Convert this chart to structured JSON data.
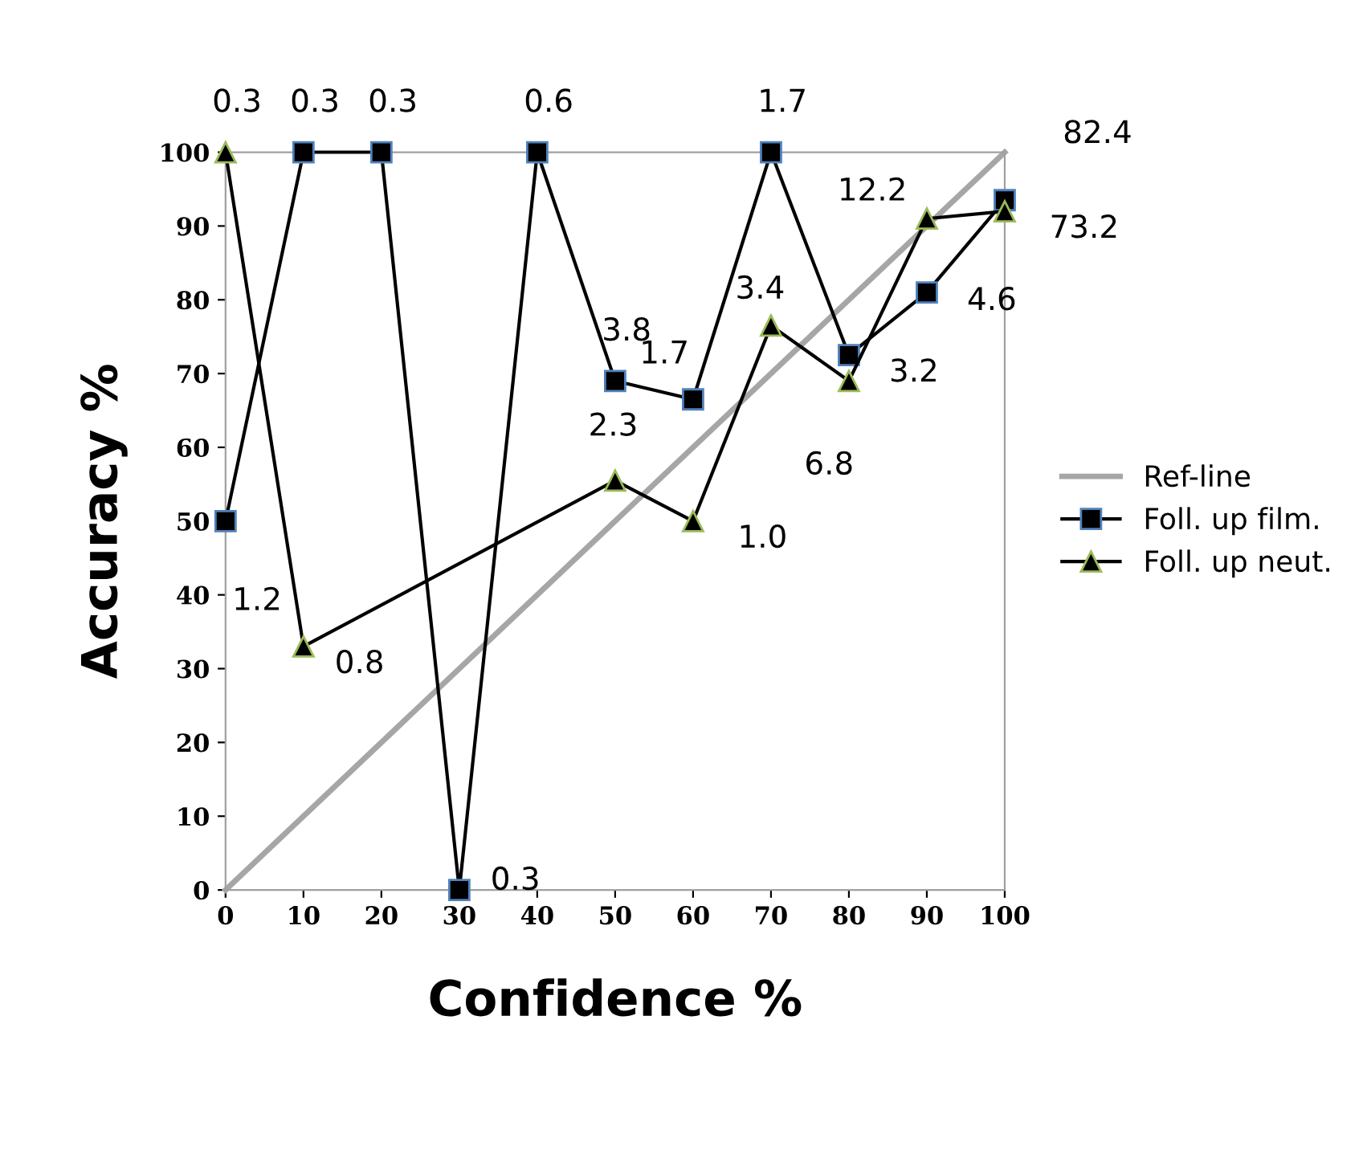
{
  "chart_data": {
    "type": "line",
    "xlabel": "Confidence %",
    "ylabel": "Accuracy %",
    "xlim": [
      0,
      100
    ],
    "xticks": [
      0,
      10,
      20,
      30,
      40,
      50,
      60,
      70,
      80,
      90,
      100
    ],
    "ylim": [
      0,
      100
    ],
    "yticks": [
      0,
      10,
      20,
      30,
      40,
      50,
      60,
      70,
      80,
      90,
      100
    ],
    "grid": false,
    "legend": "right",
    "series": [
      {
        "name": "Ref-line",
        "color": "#a6a6a6",
        "marker": "none",
        "x": [
          0,
          100
        ],
        "values": [
          0,
          100
        ]
      },
      {
        "name": "Foll. up film.",
        "color": "#000000",
        "marker": "square",
        "x": [
          0,
          10,
          20,
          30,
          40,
          50,
          60,
          70,
          80,
          90,
          100
        ],
        "values": [
          50,
          100,
          100,
          0,
          100,
          69,
          66.5,
          100,
          72.5,
          81,
          93.5
        ]
      },
      {
        "name": "Foll. up neut.",
        "color": "#000000",
        "marker": "triangle",
        "x": [
          0,
          10,
          50,
          60,
          70,
          80,
          90,
          100
        ],
        "values": [
          100,
          33,
          55.5,
          50,
          76.5,
          69,
          91,
          92
        ]
      }
    ],
    "annotations": [
      {
        "text": "0.3",
        "x": 0,
        "y": 100
      },
      {
        "text": "0.3",
        "x": 10,
        "y": 100
      },
      {
        "text": "0.3",
        "x": 20,
        "y": 100
      },
      {
        "text": "0.6",
        "x": 40,
        "y": 100
      },
      {
        "text": "1.7",
        "x": 70,
        "y": 100
      },
      {
        "text": "82.4",
        "x": 100,
        "y": 100
      },
      {
        "text": "73.2",
        "x": 100,
        "y": 92
      },
      {
        "text": "12.2",
        "x": 90,
        "y": 91
      },
      {
        "text": "4.6",
        "x": 90,
        "y": 81
      },
      {
        "text": "3.2",
        "x": 80,
        "y": 72.5
      },
      {
        "text": "6.8",
        "x": 80,
        "y": 69
      },
      {
        "text": "3.4",
        "x": 70,
        "y": 76.5
      },
      {
        "text": "3.8",
        "x": 50,
        "y": 69
      },
      {
        "text": "1.7",
        "x": 60,
        "y": 66.5
      },
      {
        "text": "2.3",
        "x": 50,
        "y": 55.5
      },
      {
        "text": "1.0",
        "x": 60,
        "y": 50
      },
      {
        "text": "1.2",
        "x": 0,
        "y": 50
      },
      {
        "text": "0.8",
        "x": 10,
        "y": 33
      },
      {
        "text": "0.3",
        "x": 30,
        "y": 0
      }
    ]
  }
}
